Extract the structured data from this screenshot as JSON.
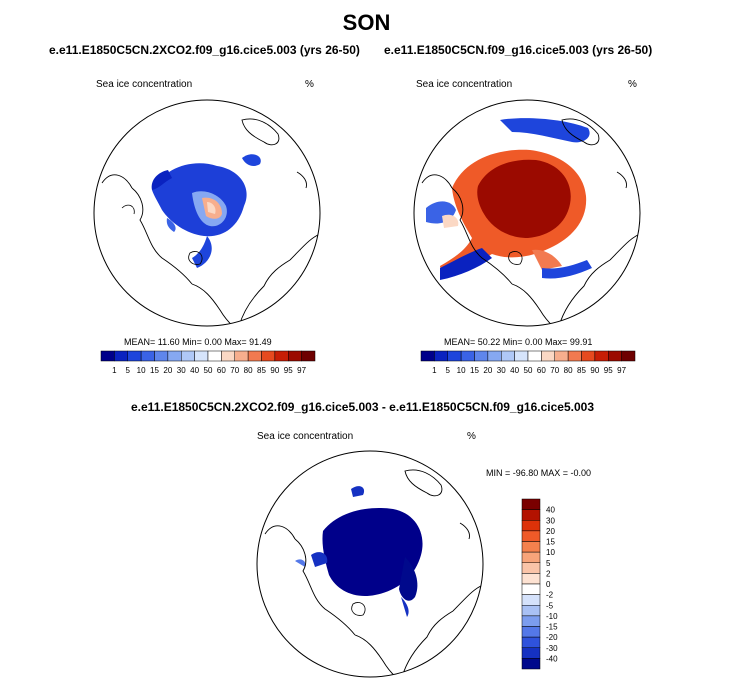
{
  "figure_title": "SON",
  "panels": [
    {
      "title": "e.e11.E1850C5CN.2XCO2.f09_g16.cice5.003 (yrs 26-50)",
      "variable": "Sea ice concentration",
      "units": "%",
      "stats": "MEAN=  11.60  Min=   0.00  Max=  91.49"
    },
    {
      "title": "e.e11.E1850C5CN.f09_g16.cice5.003 (yrs 26-50)",
      "variable": "Sea ice concentration",
      "units": "%",
      "stats": "MEAN=  50.22  Min=   0.00  Max=  99.91"
    },
    {
      "title": "e.e11.E1850C5CN.2XCO2.f09_g16.cice5.003 - e.e11.E1850C5CN.f09_g16.cice5.003",
      "variable": "Sea ice concentration",
      "units": "%",
      "stats": "MIN = -96.80 MAX =   -0.00"
    }
  ],
  "colorbar_abs": {
    "labels": [
      "1",
      "5",
      "10",
      "15",
      "20",
      "30",
      "40",
      "50",
      "60",
      "70",
      "80",
      "85",
      "90",
      "95",
      "97"
    ],
    "colors": [
      "#00008a",
      "#0a22c0",
      "#1e45dc",
      "#3a63e6",
      "#5f86ec",
      "#86a8f2",
      "#afc8f7",
      "#d6e4fb",
      "#ffffff",
      "#fbd8c4",
      "#f7ae8d",
      "#f27a50",
      "#e64a1f",
      "#c71e05",
      "#9b0a00",
      "#6e0000"
    ]
  },
  "colorbar_diff": {
    "labels": [
      "40",
      "30",
      "20",
      "15",
      "10",
      "5",
      "2",
      "0",
      "-2",
      "-5",
      "-10",
      "-15",
      "-20",
      "-30",
      "-40"
    ],
    "colors": [
      "#7a0000",
      "#b31200",
      "#dd3209",
      "#ef5a28",
      "#f4814d",
      "#f7a47a",
      "#fac4a8",
      "#fde2d2",
      "#ffffff",
      "#d5e2fb",
      "#a9c1f4",
      "#7c9dee",
      "#5478e8",
      "#2f52dc",
      "#1531c2",
      "#00098c"
    ]
  }
}
